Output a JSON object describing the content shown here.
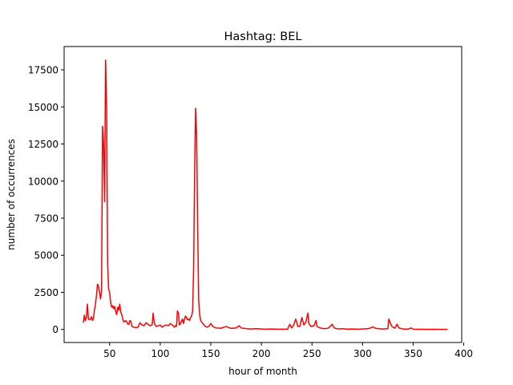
{
  "chart_data": {
    "type": "line",
    "title": "Hashtag: BEL",
    "xlabel": "hour of month",
    "ylabel": "number of occurrences",
    "xlim": [
      5,
      398
    ],
    "ylim": [
      -880,
      19070
    ],
    "xticks": [
      50,
      100,
      150,
      200,
      250,
      300,
      350,
      400
    ],
    "yticks": [
      0,
      2500,
      5000,
      7500,
      10000,
      12500,
      15000,
      17500
    ],
    "grid": false,
    "legend": "none",
    "series": [
      {
        "color": "#ff0000",
        "points": [
          [
            24,
            450
          ],
          [
            25,
            950
          ],
          [
            26,
            600
          ],
          [
            27,
            820
          ],
          [
            28,
            1700
          ],
          [
            29,
            700
          ],
          [
            30,
            650
          ],
          [
            31,
            700
          ],
          [
            32,
            850
          ],
          [
            33,
            600
          ],
          [
            34,
            750
          ],
          [
            35,
            1300
          ],
          [
            36,
            1700
          ],
          [
            37,
            2300
          ],
          [
            38,
            3050
          ],
          [
            39,
            2900
          ],
          [
            40,
            2500
          ],
          [
            41,
            2050
          ],
          [
            42,
            2600
          ],
          [
            43,
            13700
          ],
          [
            44,
            12500
          ],
          [
            45,
            8600
          ],
          [
            46,
            18150
          ],
          [
            47,
            15000
          ],
          [
            48,
            4500
          ],
          [
            49,
            2700
          ],
          [
            50,
            2500
          ],
          [
            51,
            1800
          ],
          [
            52,
            1500
          ],
          [
            53,
            1600
          ],
          [
            54,
            1400
          ],
          [
            55,
            1550
          ],
          [
            56,
            1200
          ],
          [
            57,
            1000
          ],
          [
            58,
            1500
          ],
          [
            59,
            1300
          ],
          [
            60,
            1700
          ],
          [
            61,
            1150
          ],
          [
            62,
            1000
          ],
          [
            63,
            700
          ],
          [
            64,
            500
          ],
          [
            65,
            550
          ],
          [
            66,
            600
          ],
          [
            67,
            500
          ],
          [
            68,
            350
          ],
          [
            69,
            350
          ],
          [
            70,
            600
          ],
          [
            71,
            550
          ],
          [
            72,
            200
          ],
          [
            74,
            150
          ],
          [
            76,
            120
          ],
          [
            78,
            150
          ],
          [
            80,
            450
          ],
          [
            82,
            300
          ],
          [
            84,
            250
          ],
          [
            86,
            450
          ],
          [
            88,
            350
          ],
          [
            90,
            250
          ],
          [
            92,
            300
          ],
          [
            93,
            1100
          ],
          [
            94,
            500
          ],
          [
            95,
            300
          ],
          [
            96,
            200
          ],
          [
            98,
            250
          ],
          [
            100,
            300
          ],
          [
            102,
            150
          ],
          [
            104,
            250
          ],
          [
            106,
            300
          ],
          [
            108,
            250
          ],
          [
            110,
            400
          ],
          [
            112,
            300
          ],
          [
            114,
            150
          ],
          [
            115,
            250
          ],
          [
            116,
            200
          ],
          [
            117,
            1250
          ],
          [
            118,
            1100
          ],
          [
            119,
            300
          ],
          [
            120,
            400
          ],
          [
            121,
            550
          ],
          [
            122,
            700
          ],
          [
            123,
            400
          ],
          [
            124,
            700
          ],
          [
            125,
            900
          ],
          [
            126,
            800
          ],
          [
            127,
            650
          ],
          [
            128,
            700
          ],
          [
            129,
            600
          ],
          [
            130,
            800
          ],
          [
            131,
            900
          ],
          [
            132,
            1200
          ],
          [
            133,
            4000
          ],
          [
            134,
            10500
          ],
          [
            135,
            14900
          ],
          [
            136,
            13000
          ],
          [
            137,
            7000
          ],
          [
            138,
            2000
          ],
          [
            139,
            1000
          ],
          [
            140,
            600
          ],
          [
            142,
            400
          ],
          [
            144,
            250
          ],
          [
            146,
            150
          ],
          [
            148,
            200
          ],
          [
            150,
            400
          ],
          [
            152,
            200
          ],
          [
            155,
            100
          ],
          [
            160,
            80
          ],
          [
            165,
            200
          ],
          [
            170,
            70
          ],
          [
            175,
            100
          ],
          [
            178,
            250
          ],
          [
            180,
            100
          ],
          [
            185,
            50
          ],
          [
            190,
            30
          ],
          [
            195,
            50
          ],
          [
            200,
            30
          ],
          [
            205,
            20
          ],
          [
            210,
            30
          ],
          [
            215,
            20
          ],
          [
            220,
            20
          ],
          [
            226,
            20
          ],
          [
            228,
            350
          ],
          [
            230,
            100
          ],
          [
            232,
            300
          ],
          [
            234,
            700
          ],
          [
            236,
            200
          ],
          [
            238,
            200
          ],
          [
            240,
            800
          ],
          [
            242,
            300
          ],
          [
            244,
            500
          ],
          [
            246,
            1100
          ],
          [
            247,
            400
          ],
          [
            249,
            200
          ],
          [
            252,
            250
          ],
          [
            254,
            600
          ],
          [
            255,
            200
          ],
          [
            258,
            100
          ],
          [
            262,
            50
          ],
          [
            266,
            80
          ],
          [
            268,
            200
          ],
          [
            270,
            350
          ],
          [
            272,
            100
          ],
          [
            276,
            30
          ],
          [
            280,
            50
          ],
          [
            285,
            20
          ],
          [
            290,
            30
          ],
          [
            295,
            20
          ],
          [
            300,
            30
          ],
          [
            305,
            50
          ],
          [
            308,
            100
          ],
          [
            310,
            180
          ],
          [
            312,
            100
          ],
          [
            315,
            50
          ],
          [
            320,
            30
          ],
          [
            325,
            50
          ],
          [
            326,
            700
          ],
          [
            327,
            500
          ],
          [
            329,
            200
          ],
          [
            332,
            80
          ],
          [
            334,
            350
          ],
          [
            336,
            100
          ],
          [
            340,
            30
          ],
          [
            345,
            20
          ],
          [
            348,
            100
          ],
          [
            350,
            20
          ],
          [
            355,
            10
          ],
          [
            360,
            10
          ],
          [
            365,
            5
          ],
          [
            370,
            10
          ],
          [
            375,
            5
          ],
          [
            380,
            5
          ],
          [
            384,
            5
          ]
        ]
      }
    ]
  }
}
